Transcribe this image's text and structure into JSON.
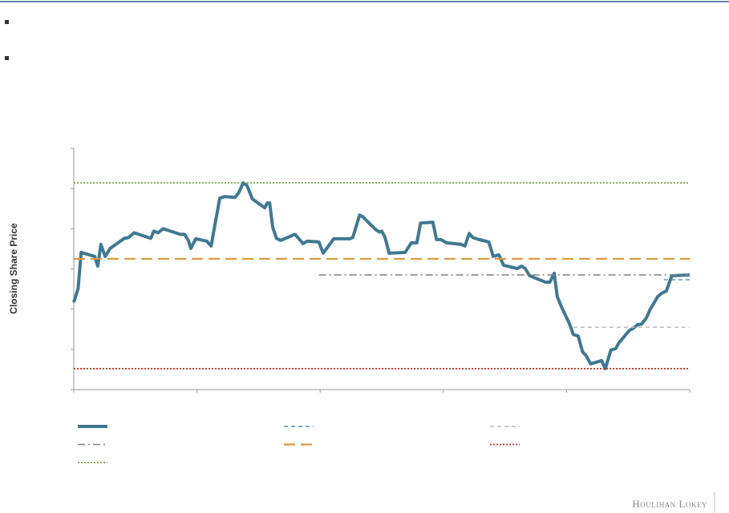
{
  "chart_data": {
    "type": "line",
    "y_label": "Closing Share Price",
    "xlim": [
      0,
      100
    ],
    "xticks": [
      0,
      20,
      40,
      60,
      80,
      100
    ],
    "ylim": [
      0,
      6
    ],
    "yticks": [
      0,
      1,
      2,
      3,
      4,
      5,
      6
    ],
    "series": [
      {
        "color": "#3f7891",
        "style": "solid",
        "x": [
          0,
          0.7,
          1.2,
          3.4,
          3.9,
          4.4,
          5.1,
          5.9,
          8.2,
          8.9,
          9.8,
          12.5,
          13.0,
          13.7,
          14.5,
          17.3,
          18.0,
          18.6,
          19.0,
          19.8,
          21.6,
          22.3,
          23.7,
          24.5,
          26.2,
          26.8,
          27.5,
          28.1,
          29.0,
          31.0,
          31.4,
          31.8,
          32.3,
          32.9,
          33.6,
          35.9,
          36.5,
          37.2,
          37.9,
          39.8,
          40.5,
          42.2,
          44.8,
          45.3,
          46.4,
          46.9,
          49.0,
          49.6,
          50.0,
          50.5,
          51.2,
          53.8,
          54.8,
          55.7,
          56.3,
          58.3,
          58.9,
          59.6,
          60.5,
          62.9,
          63.5,
          64.2,
          64.8,
          65.8,
          67.4,
          68.1,
          69.0,
          69.8,
          72.0,
          72.7,
          73.3,
          74.0,
          76.6,
          77.3,
          78.0,
          78.5,
          79.2,
          80.5,
          81.1,
          81.9,
          82.6,
          83.2,
          83.9,
          85.7,
          86.3,
          87.2,
          88.0,
          88.5,
          90.2,
          90.9,
          91.5,
          92.2,
          93.0,
          93.5,
          94.8,
          95.4,
          96.2,
          97.1,
          100
        ],
        "values": [
          2.17,
          2.51,
          3.41,
          3.31,
          3.07,
          3.61,
          3.31,
          3.51,
          3.76,
          3.78,
          3.9,
          3.76,
          3.94,
          3.9,
          4.0,
          3.86,
          3.86,
          3.71,
          3.51,
          3.75,
          3.69,
          3.57,
          4.76,
          4.8,
          4.78,
          4.9,
          5.14,
          5.08,
          4.74,
          4.52,
          4.64,
          4.64,
          4.04,
          3.76,
          3.71,
          3.86,
          3.76,
          3.63,
          3.69,
          3.67,
          3.39,
          3.75,
          3.75,
          3.78,
          4.34,
          4.3,
          3.98,
          3.92,
          3.94,
          3.8,
          3.39,
          3.41,
          3.65,
          3.65,
          4.14,
          4.16,
          3.73,
          3.73,
          3.65,
          3.61,
          3.57,
          3.88,
          3.78,
          3.73,
          3.67,
          3.31,
          3.35,
          3.09,
          3.01,
          3.07,
          3.01,
          2.83,
          2.67,
          2.67,
          2.89,
          2.31,
          2.05,
          1.63,
          1.37,
          1.33,
          0.94,
          0.84,
          0.64,
          0.72,
          0.52,
          0.98,
          1.02,
          1.16,
          1.47,
          1.53,
          1.61,
          1.63,
          1.79,
          1.97,
          2.31,
          2.39,
          2.45,
          2.83,
          2.85
        ]
      },
      {
        "color": "#5b8db8",
        "style": "dash",
        "value": 2.73,
        "xrange": [
          95.8,
          100
        ]
      },
      {
        "color": "#b9b9b9",
        "style": "dash",
        "value": 1.55,
        "xrange": [
          81.1,
          100
        ]
      },
      {
        "color": "#7a7f87",
        "style": "dashdot",
        "value": 2.85,
        "xrange": [
          39.8,
          100
        ]
      },
      {
        "color": "#e0963c",
        "style": "longdash",
        "value": 3.25,
        "xrange": [
          0,
          100
        ]
      },
      {
        "color": "#c0392b",
        "style": "dot",
        "value": 0.52,
        "xrange": [
          0,
          100
        ]
      },
      {
        "color": "#7aa04a",
        "style": "dot",
        "value": 5.14,
        "xrange": [
          0,
          100
        ]
      }
    ]
  },
  "footer": {
    "logo": "Houlihan Lokey"
  }
}
